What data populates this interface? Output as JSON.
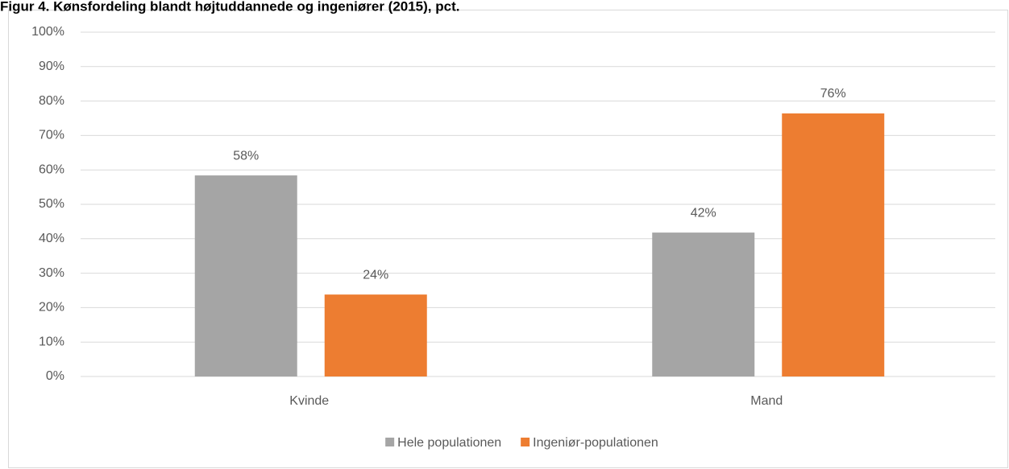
{
  "chart_data": {
    "type": "bar",
    "title": "Figur 4. Kønsfordeling blandt højtuddannede og ingeniører (2015), pct.",
    "categories": [
      "Kvinde",
      "Mand"
    ],
    "series": [
      {
        "name": "Hele populationen",
        "color": "#a5a5a5",
        "values": [
          58.4,
          41.8
        ],
        "value_labels": [
          "58%",
          "42%"
        ]
      },
      {
        "name": "Ingeniør-populationen",
        "color": "#ed7d31",
        "values": [
          23.8,
          76.4
        ],
        "value_labels": [
          "24%",
          "76%"
        ]
      }
    ],
    "ylim": [
      0,
      100
    ],
    "yticks": [
      {
        "value": 0,
        "label": "0%"
      },
      {
        "value": 10,
        "label": "10%"
      },
      {
        "value": 20,
        "label": "20%"
      },
      {
        "value": 30,
        "label": "30%"
      },
      {
        "value": 40,
        "label": "40%"
      },
      {
        "value": 50,
        "label": "50%"
      },
      {
        "value": 60,
        "label": "60%"
      },
      {
        "value": 70,
        "label": "70%"
      },
      {
        "value": 80,
        "label": "80%"
      },
      {
        "value": 90,
        "label": "90%"
      },
      {
        "value": 100,
        "label": "100%"
      }
    ],
    "grid": true,
    "legend": "bottom"
  }
}
